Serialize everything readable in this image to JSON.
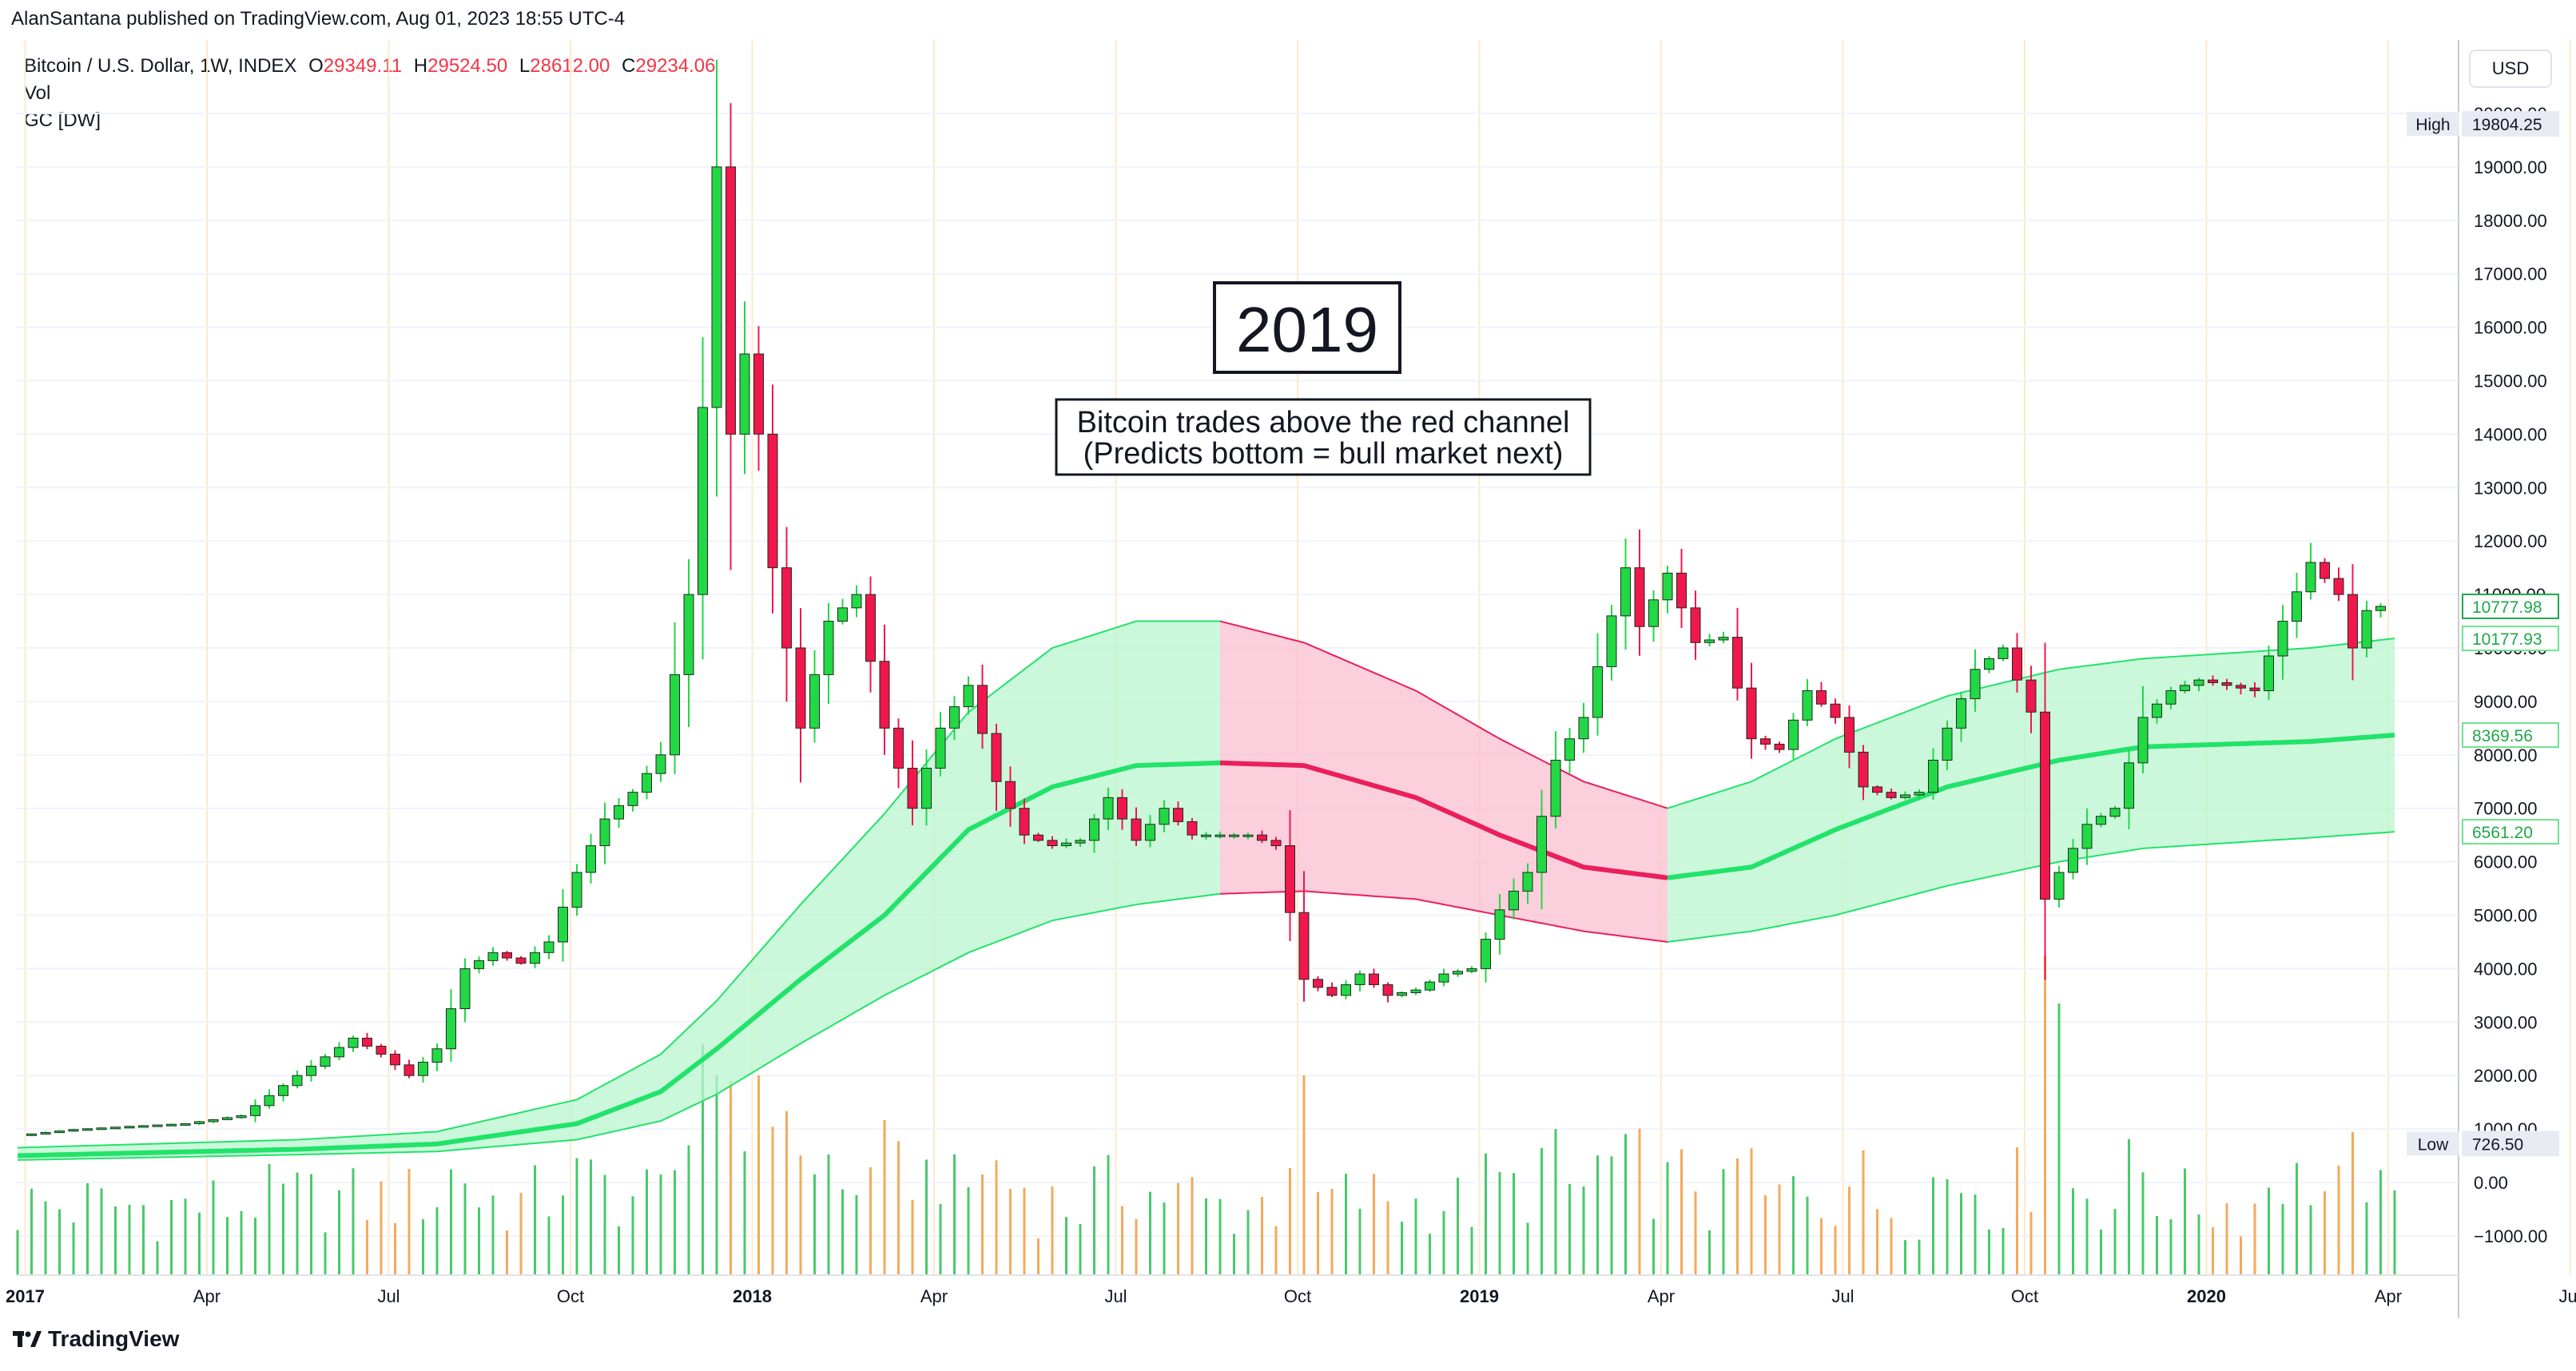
{
  "publisher_line": "AlanSantana published on TradingView.com, Aug 01, 2023 18:55 UTC-4",
  "legend": {
    "symbol": "Bitcoin / U.S. Dollar, 1W, INDEX",
    "open_label": "O",
    "open": "29349.11",
    "high_label": "H",
    "high": "29524.50",
    "low_label": "L",
    "low": "28612.00",
    "close_label": "C",
    "close": "29234.06",
    "indicator_1": "Vol",
    "indicator_2": "GC [DW]"
  },
  "currency_button": "USD",
  "footer_brand": "TradingView",
  "colors": {
    "up": "#22d845",
    "down": "#f0174c",
    "channel_green_fill": "#b9f6cf",
    "channel_red_fill": "#fbbfd1",
    "channel_green_line": "#22e36a",
    "channel_red_line": "#ea1f5c",
    "vol_up": "#49c96b",
    "vol_down": "#f5a95b",
    "grid": "#f0f3fa",
    "vgrid": "#fde9c9"
  },
  "chart_data": {
    "type": "candlestick",
    "price_axis": {
      "ticks": [
        "20000.00",
        "19000.00",
        "18000.00",
        "17000.00",
        "16000.00",
        "15000.00",
        "14000.00",
        "13000.00",
        "12000.00",
        "11000.00",
        "10000.00",
        "9000.00",
        "8000.00",
        "7000.00",
        "6000.00",
        "5000.00",
        "4000.00",
        "3000.00",
        "2000.00",
        "1000.00",
        "0.00",
        "−1000.00"
      ],
      "high_label": "High",
      "high_value": "19804.25",
      "low_label": "Low",
      "low_value": "726.50",
      "tags": [
        {
          "value": "10777.98",
          "style": "green"
        },
        {
          "value": "10177.93",
          "style": "lightgreen"
        },
        {
          "value": "8369.56",
          "style": "lightgreen"
        },
        {
          "value": "6561.20",
          "style": "lightgreen"
        }
      ]
    },
    "time_axis": [
      {
        "label": "2017",
        "bold": true
      },
      {
        "label": "Apr",
        "bold": false
      },
      {
        "label": "Jul",
        "bold": false
      },
      {
        "label": "Oct",
        "bold": false
      },
      {
        "label": "2018",
        "bold": true
      },
      {
        "label": "Apr",
        "bold": false
      },
      {
        "label": "Jul",
        "bold": false
      },
      {
        "label": "Oct",
        "bold": false
      },
      {
        "label": "2019",
        "bold": true
      },
      {
        "label": "Apr",
        "bold": false
      },
      {
        "label": "Jul",
        "bold": false
      },
      {
        "label": "Oct",
        "bold": false
      },
      {
        "label": "2020",
        "bold": true
      },
      {
        "label": "Apr",
        "bold": false
      },
      {
        "label": "Jul",
        "bold": false
      }
    ],
    "annotations": {
      "year_box": "2019",
      "note_line1": "Bitcoin trades above the red channel",
      "note_line2": "(Predicts bottom = bull market next)"
    },
    "weekly_close": [
      [
        0,
        880
      ],
      [
        4,
        990
      ],
      [
        8,
        1050
      ],
      [
        12,
        1100
      ],
      [
        16,
        1250
      ],
      [
        20,
        2000
      ],
      [
        24,
        2700
      ],
      [
        26,
        2400
      ],
      [
        28,
        2000
      ],
      [
        30,
        2500
      ],
      [
        32,
        4000
      ],
      [
        34,
        4300
      ],
      [
        36,
        4100
      ],
      [
        38,
        4500
      ],
      [
        40,
        5800
      ],
      [
        42,
        6800
      ],
      [
        44,
        7300
      ],
      [
        46,
        8000
      ],
      [
        48,
        11000
      ],
      [
        49,
        14500
      ],
      [
        50,
        19000
      ],
      [
        51,
        14000
      ],
      [
        52,
        15500
      ],
      [
        53,
        14000
      ],
      [
        54,
        11500
      ],
      [
        56,
        8500
      ],
      [
        58,
        10500
      ],
      [
        60,
        11000
      ],
      [
        62,
        8500
      ],
      [
        64,
        7000
      ],
      [
        66,
        8500
      ],
      [
        68,
        9300
      ],
      [
        70,
        7500
      ],
      [
        72,
        6500
      ],
      [
        74,
        6300
      ],
      [
        76,
        6400
      ],
      [
        78,
        7200
      ],
      [
        80,
        6400
      ],
      [
        82,
        7000
      ],
      [
        84,
        6500
      ],
      [
        86,
        6500
      ],
      [
        88,
        6500
      ],
      [
        90,
        6300
      ],
      [
        92,
        3800
      ],
      [
        94,
        3500
      ],
      [
        96,
        3900
      ],
      [
        98,
        3500
      ],
      [
        100,
        3600
      ],
      [
        102,
        3900
      ],
      [
        104,
        4000
      ],
      [
        106,
        5100
      ],
      [
        108,
        5800
      ],
      [
        110,
        7900
      ],
      [
        112,
        8700
      ],
      [
        114,
        10600
      ],
      [
        115,
        11500
      ],
      [
        116,
        10400
      ],
      [
        118,
        11400
      ],
      [
        120,
        10100
      ],
      [
        122,
        10200
      ],
      [
        124,
        8300
      ],
      [
        126,
        8100
      ],
      [
        128,
        9200
      ],
      [
        130,
        8700
      ],
      [
        132,
        7400
      ],
      [
        134,
        7200
      ],
      [
        136,
        7300
      ],
      [
        138,
        8500
      ],
      [
        140,
        9600
      ],
      [
        142,
        10000
      ],
      [
        144,
        8800
      ],
      [
        145,
        5300
      ],
      [
        146,
        5800
      ],
      [
        148,
        6700
      ],
      [
        150,
        7000
      ],
      [
        152,
        8700
      ],
      [
        154,
        9200
      ],
      [
        156,
        9400
      ],
      [
        158,
        9300
      ],
      [
        160,
        9200
      ],
      [
        162,
        10500
      ],
      [
        164,
        11600
      ],
      [
        166,
        11000
      ],
      [
        167,
        10000
      ],
      [
        168,
        10700
      ],
      [
        169,
        10778
      ]
    ],
    "channel": {
      "mid": [
        [
          0,
          500
        ],
        [
          20,
          620
        ],
        [
          30,
          720
        ],
        [
          40,
          1100
        ],
        [
          46,
          1700
        ],
        [
          50,
          2500
        ],
        [
          56,
          3800
        ],
        [
          62,
          5000
        ],
        [
          68,
          6600
        ],
        [
          74,
          7400
        ],
        [
          80,
          7800
        ],
        [
          86,
          7850
        ],
        [
          92,
          7800
        ],
        [
          100,
          7200
        ],
        [
          106,
          6500
        ],
        [
          112,
          5900
        ],
        [
          118,
          5700
        ],
        [
          124,
          5900
        ],
        [
          130,
          6600
        ],
        [
          138,
          7400
        ],
        [
          146,
          7900
        ],
        [
          152,
          8150
        ],
        [
          158,
          8200
        ],
        [
          164,
          8250
        ],
        [
          170,
          8370
        ]
      ],
      "upper": [
        [
          0,
          650
        ],
        [
          20,
          800
        ],
        [
          30,
          950
        ],
        [
          40,
          1550
        ],
        [
          46,
          2400
        ],
        [
          50,
          3400
        ],
        [
          56,
          5200
        ],
        [
          62,
          6900
        ],
        [
          68,
          8800
        ],
        [
          74,
          10000
        ],
        [
          80,
          10500
        ],
        [
          86,
          10500
        ],
        [
          92,
          10100
        ],
        [
          100,
          9200
        ],
        [
          106,
          8300
        ],
        [
          112,
          7500
        ],
        [
          118,
          7000
        ],
        [
          124,
          7500
        ],
        [
          130,
          8300
        ],
        [
          138,
          9100
        ],
        [
          146,
          9600
        ],
        [
          152,
          9800
        ],
        [
          158,
          9900
        ],
        [
          164,
          10000
        ],
        [
          170,
          10180
        ]
      ],
      "lower": [
        [
          0,
          420
        ],
        [
          20,
          520
        ],
        [
          30,
          580
        ],
        [
          40,
          800
        ],
        [
          46,
          1150
        ],
        [
          50,
          1650
        ],
        [
          56,
          2600
        ],
        [
          62,
          3500
        ],
        [
          68,
          4300
        ],
        [
          74,
          4900
        ],
        [
          80,
          5200
        ],
        [
          86,
          5400
        ],
        [
          92,
          5450
        ],
        [
          100,
          5300
        ],
        [
          106,
          5000
        ],
        [
          112,
          4700
        ],
        [
          118,
          4500
        ],
        [
          124,
          4700
        ],
        [
          130,
          5000
        ],
        [
          138,
          5550
        ],
        [
          146,
          6000
        ],
        [
          152,
          6250
        ],
        [
          158,
          6350
        ],
        [
          164,
          6450
        ],
        [
          170,
          6560
        ]
      ],
      "red_start_week": 86,
      "red_end_week": 118
    },
    "volume_weeks": 170
  }
}
